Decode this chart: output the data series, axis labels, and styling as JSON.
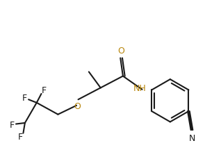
{
  "bg_color": "#ffffff",
  "line_color": "#1a1a1a",
  "atom_color_O": "#b8860b",
  "atom_color_N": "#b8860b",
  "bond_width": 1.5,
  "font_size": 9,
  "figsize": [
    3.18,
    2.16
  ],
  "dpi": 100,
  "xlim": [
    0,
    10
  ],
  "ylim": [
    -4.5,
    2.5
  ]
}
